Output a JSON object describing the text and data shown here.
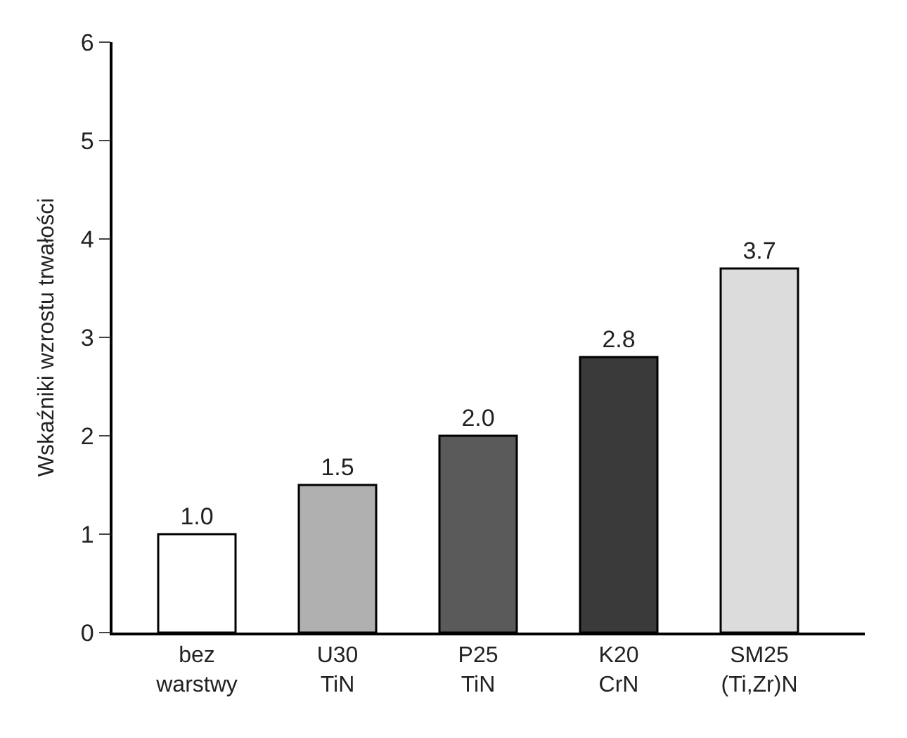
{
  "chart_data": {
    "type": "bar",
    "ylabel": "Wskaźniki wzrostu trwałości",
    "categories": [
      "bez\nwarstwy",
      "U30\nTiN",
      "P25\nTiN",
      "K20\nCrN",
      "SM25\n(Ti,Zr)N"
    ],
    "values": [
      1.0,
      1.5,
      2.0,
      2.8,
      3.7
    ],
    "value_labels": [
      "1.0",
      "1.5",
      "2.0",
      "2.8",
      "3.7"
    ],
    "colors": [
      "#ffffff",
      "#b0b0b0",
      "#5a5a5a",
      "#3a3a3a",
      "#dcdcdc"
    ],
    "ylim": [
      0,
      6
    ],
    "yticks": [
      0,
      1,
      2,
      3,
      4,
      5,
      6
    ]
  }
}
